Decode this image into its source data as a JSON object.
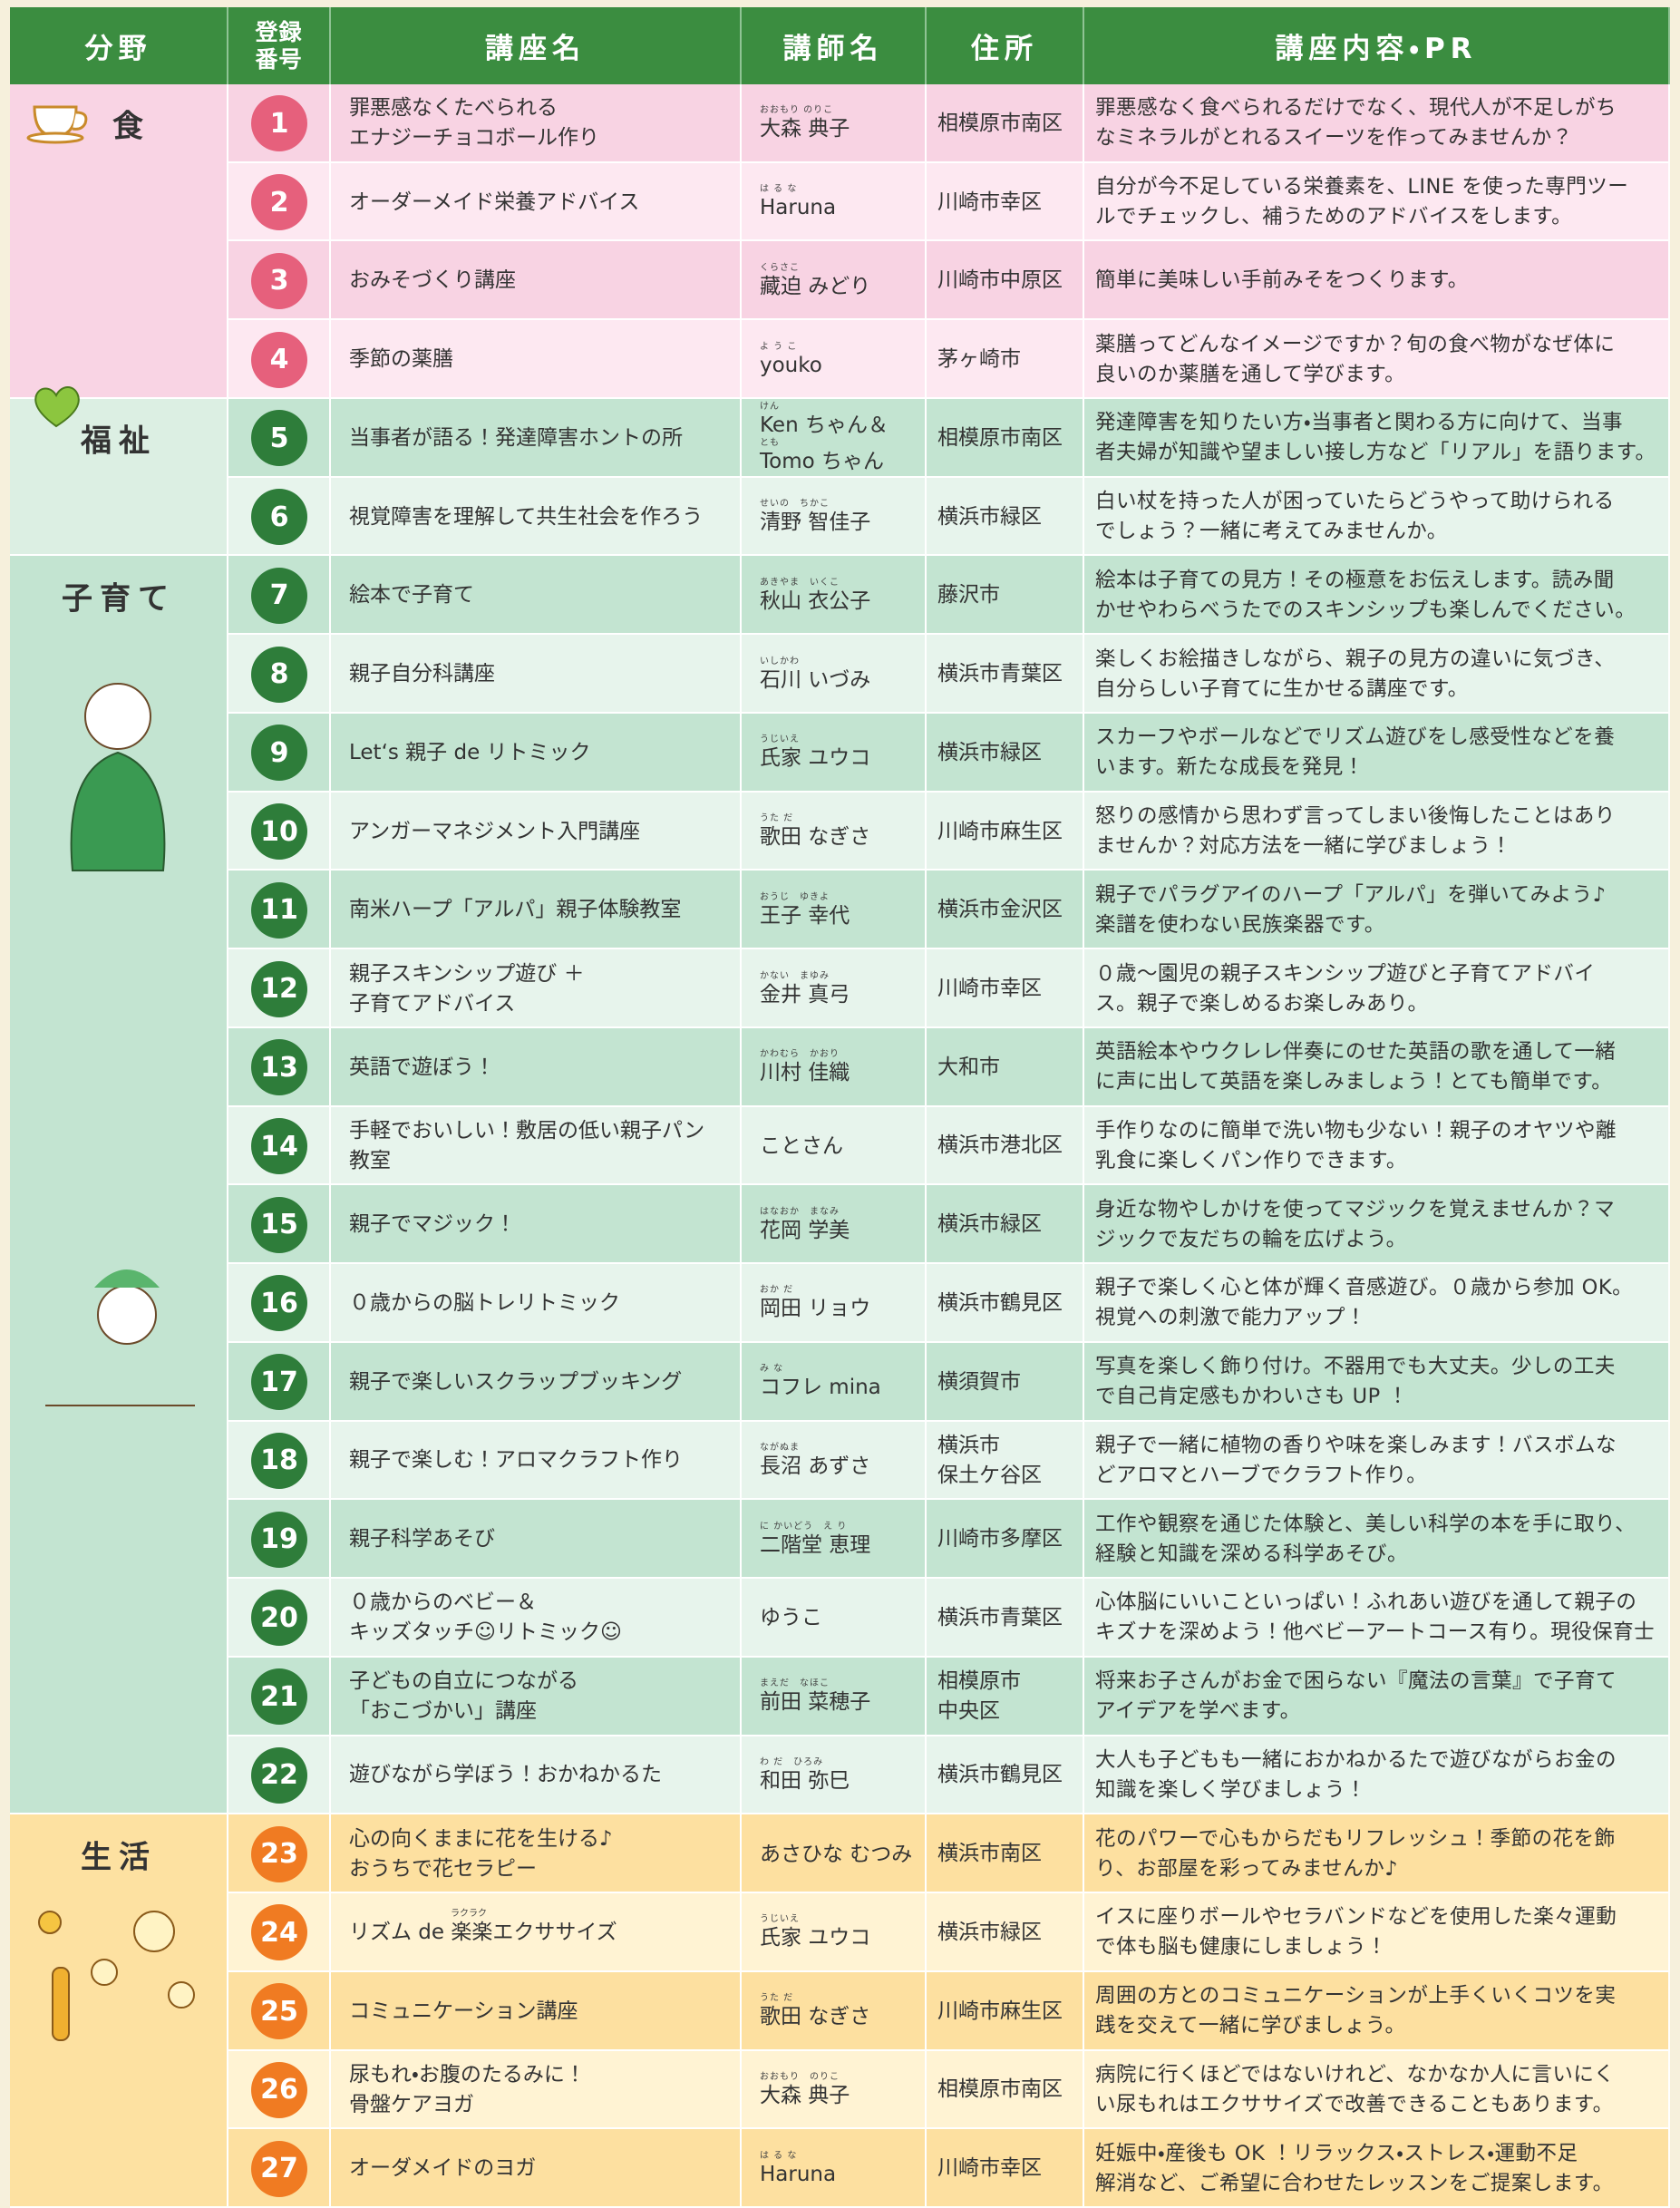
{
  "header": {
    "category": "分野",
    "number": [
      "登録",
      "番号"
    ],
    "title": "講座名",
    "lecturer": "講師名",
    "address": "住所",
    "pr": "講座内容・PR"
  },
  "sections": [
    {
      "name": "食",
      "rows": [
        {
          "no": 1,
          "title": [
            "罪悪感なくたべられる",
            "エナジーチョコボール作り"
          ],
          "lecturer": [
            {
              "reading": "おおもり のりこ",
              "name": "大森 典子"
            }
          ],
          "address": [
            "相模原市南区"
          ],
          "pr": [
            "罪悪感なく食べられるだけでなく、現代人が不足しがち",
            "なミネラルがとれるスイーツを作ってみませんか？"
          ]
        },
        {
          "no": 2,
          "title": [
            "オーダーメイド栄養アドバイス"
          ],
          "lecturer": [
            {
              "reading": "は る な",
              "name": "Haruna"
            }
          ],
          "address": [
            "川崎市幸区"
          ],
          "pr": [
            "自分が今不足している栄養素を、LINE を使った専門ツー",
            "ルでチェックし、補うためのアドバイスをします。"
          ]
        },
        {
          "no": 3,
          "title": [
            "おみそづくり講座"
          ],
          "lecturer": [
            {
              "reading": "くらさこ",
              "name": "藏迫 みどり"
            }
          ],
          "address": [
            "川崎市中原区"
          ],
          "pr": [
            "簡単に美味しい手前みそをつくります。"
          ]
        },
        {
          "no": 4,
          "title": [
            "季節の薬膳"
          ],
          "lecturer": [
            {
              "reading": "よ う こ",
              "name": "youko"
            }
          ],
          "address": [
            "茅ヶ崎市"
          ],
          "pr": [
            "薬膳ってどんなイメージですか？旬の食べ物がなぜ体に",
            "良いのか薬膳を通して学びます。"
          ]
        }
      ]
    },
    {
      "name": "福祉",
      "rows": [
        {
          "no": 5,
          "title": [
            "当事者が語る！発達障害ホントの所"
          ],
          "lecturer": [
            {
              "reading": "けん",
              "name": "Ken ちゃん＆"
            },
            {
              "reading": "とも",
              "name": "Tomo ちゃん"
            }
          ],
          "address": [
            "相模原市南区"
          ],
          "pr": [
            "発達障害を知りたい方・当事者と関わる方に向けて、当事",
            "者夫婦が知識や望ましい接し方など「リアル」を語ります。"
          ]
        },
        {
          "no": 6,
          "title": [
            "視覚障害を理解して共生社会を作ろう"
          ],
          "lecturer": [
            {
              "reading": "せいの　ちかこ",
              "name": "清野 智佳子"
            }
          ],
          "address": [
            "横浜市緑区"
          ],
          "pr": [
            "白い杖を持った人が困っていたらどうやって助けられる",
            "でしょう？一緒に考えてみませんか。"
          ]
        }
      ]
    },
    {
      "name": "子育て",
      "rows": [
        {
          "no": 7,
          "title": [
            "絵本で子育て"
          ],
          "lecturer": [
            {
              "reading": "あきやま　いくこ",
              "name": "秋山 衣公子"
            }
          ],
          "address": [
            "藤沢市"
          ],
          "pr": [
            "絵本は子育ての見方！その極意をお伝えします。読み聞",
            "かせやわらべうたでのスキンシップも楽しんでください。"
          ]
        },
        {
          "no": 8,
          "title": [
            "親子自分科講座"
          ],
          "lecturer": [
            {
              "reading": "いしかわ",
              "name": "石川 いづみ"
            }
          ],
          "address": [
            "横浜市青葉区"
          ],
          "pr": [
            "楽しくお絵描きしながら、親子の見方の違いに気づき、",
            "自分らしい子育てに生かせる講座です。"
          ]
        },
        {
          "no": 9,
          "title": [
            "Let‘s 親子 de リトミック"
          ],
          "lecturer": [
            {
              "reading": "うじいえ",
              "name": "氏家 ユウコ"
            }
          ],
          "address": [
            "横浜市緑区"
          ],
          "pr": [
            "スカーフやボールなどでリズム遊びをし感受性などを養",
            "います。新たな成長を発見！"
          ]
        },
        {
          "no": 10,
          "title": [
            "アンガーマネジメント入門講座"
          ],
          "lecturer": [
            {
              "reading": "うた だ",
              "name": "歌田 なぎさ"
            }
          ],
          "address": [
            "川崎市麻生区"
          ],
          "pr": [
            "怒りの感情から思わず言ってしまい後悔したことはあり",
            "ませんか？対応方法を一緒に学びましょう！"
          ]
        },
        {
          "no": 11,
          "title": [
            "南米ハープ「アルパ」親子体験教室"
          ],
          "lecturer": [
            {
              "reading": "おうじ　ゆきよ",
              "name": "王子 幸代"
            }
          ],
          "address": [
            "横浜市金沢区"
          ],
          "pr": [
            "親子でパラグアイのハープ「アルパ」を弾いてみよう♪",
            "楽譜を使わない民族楽器です。"
          ]
        },
        {
          "no": 12,
          "title": [
            "親子スキンシップ遊び ＋",
            "子育てアドバイス"
          ],
          "lecturer": [
            {
              "reading": "かない　まゆみ",
              "name": "金井 真弓"
            }
          ],
          "address": [
            "川崎市幸区"
          ],
          "pr": [
            "０歳～園児の親子スキンシップ遊びと子育てアドバイ",
            "ス。親子で楽しめるお楽しみあり。"
          ]
        },
        {
          "no": 13,
          "title": [
            "英語で遊ぼう！"
          ],
          "lecturer": [
            {
              "reading": "かわむら　かおり",
              "name": "川村 佳織"
            }
          ],
          "address": [
            "大和市"
          ],
          "pr": [
            "英語絵本やウクレレ伴奏にのせた英語の歌を通して一緒",
            "に声に出して英語を楽しみましょう！とても簡単です。"
          ]
        },
        {
          "no": 14,
          "title": [
            "手軽でおいしい！敷居の低い親子パン",
            "教室"
          ],
          "lecturer": [
            {
              "name": "ことさん"
            }
          ],
          "address": [
            "横浜市港北区"
          ],
          "pr": [
            "手作りなのに簡単で洗い物も少ない！親子のオヤツや離",
            "乳食に楽しくパン作りできます。"
          ]
        },
        {
          "no": 15,
          "title": [
            "親子でマジック！"
          ],
          "lecturer": [
            {
              "reading": "はなおか　まなみ",
              "name": "花岡 学美"
            }
          ],
          "address": [
            "横浜市緑区"
          ],
          "pr": [
            "身近な物やしかけを使ってマジックを覚えませんか？マ",
            "ジックで友だちの輪を広げよう。"
          ]
        },
        {
          "no": 16,
          "title": [
            "０歳からの脳トレリトミック"
          ],
          "lecturer": [
            {
              "reading": "おか だ",
              "name": "岡田 リョウ"
            }
          ],
          "address": [
            "横浜市鶴見区"
          ],
          "pr": [
            "親子で楽しく心と体が輝く音感遊び。０歳から参加 OK。",
            "視覚への刺激で能力アップ！"
          ]
        },
        {
          "no": 17,
          "title": [
            "親子で楽しいスクラップブッキング"
          ],
          "lecturer": [
            {
              "reading": "み な",
              "name": "コフレ mina"
            }
          ],
          "address": [
            "横須賀市"
          ],
          "pr": [
            "写真を楽しく飾り付け。不器用でも大丈夫。少しの工夫",
            "で自己肯定感もかわいさも UP ！"
          ]
        },
        {
          "no": 18,
          "title": [
            "親子で楽しむ！アロマクラフト作り"
          ],
          "lecturer": [
            {
              "reading": "ながぬま",
              "name": "長沼 あずさ"
            }
          ],
          "address": [
            "横浜市",
            "保土ケ谷区"
          ],
          "pr": [
            "親子で一緒に植物の香りや味を楽しみます！バスボムな",
            "どアロマとハーブでクラフト作り。"
          ]
        },
        {
          "no": 19,
          "title": [
            "親子科学あそび"
          ],
          "lecturer": [
            {
              "reading": "に かいどう　え り",
              "name": "二階堂 恵理"
            }
          ],
          "address": [
            "川崎市多摩区"
          ],
          "pr": [
            "工作や観察を通じた体験と、美しい科学の本を手に取り、",
            "経験と知識を深める科学あそび。"
          ]
        },
        {
          "no": 20,
          "title": [
            "０歳からのベビー＆",
            "キッズタッチ☺リトミック☺"
          ],
          "lecturer": [
            {
              "name": "ゆうこ"
            }
          ],
          "address": [
            "横浜市青葉区"
          ],
          "pr": [
            "心体脳にいいこといっぱい！ふれあい遊びを通して親子の",
            "キズナを深めよう！他ベビーアートコース有り。現役保育士"
          ]
        },
        {
          "no": 21,
          "title": [
            "子どもの自立につながる",
            "「おこづかい」講座"
          ],
          "lecturer": [
            {
              "reading": "まえだ　なほこ",
              "name": "前田 菜穂子"
            }
          ],
          "address": [
            "相模原市",
            "中央区"
          ],
          "pr": [
            "将来お子さんがお金で困らない『魔法の言葉』で子育て",
            "アイデアを学べます。"
          ]
        },
        {
          "no": 22,
          "title": [
            "遊びながら学ぼう！おかねかるた"
          ],
          "lecturer": [
            {
              "reading": "わ だ　ひろみ",
              "name": "和田 弥巳"
            }
          ],
          "address": [
            "横浜市鶴見区"
          ],
          "pr": [
            "大人も子どもも一緒におかねかるたで遊びながらお金の",
            "知識を楽しく学びましょう！"
          ]
        }
      ]
    },
    {
      "name": "生活",
      "rows": [
        {
          "no": 23,
          "title": [
            "心の向くままに花を生ける♪",
            "おうちで花セラピー"
          ],
          "lecturer": [
            {
              "name": "あさひな むつみ"
            }
          ],
          "address": [
            "横浜市南区"
          ],
          "pr": [
            "花のパワーで心もからだもリフレッシュ！季節の花を飾",
            "り、お部屋を彩ってみませんか♪"
          ]
        },
        {
          "no": 24,
          "title": [
            "リズム de 楽楽エクササイズ"
          ],
          "title_ruby": "ラクラク",
          "lecturer": [
            {
              "reading": "うじいえ",
              "name": "氏家 ユウコ"
            }
          ],
          "address": [
            "横浜市緑区"
          ],
          "pr": [
            "イスに座りボールやセラバンドなどを使用した楽々運動",
            "で体も脳も健康にしましょう！"
          ]
        },
        {
          "no": 25,
          "title": [
            "コミュニケーション講座"
          ],
          "lecturer": [
            {
              "reading": "うた だ",
              "name": "歌田 なぎさ"
            }
          ],
          "address": [
            "川崎市麻生区"
          ],
          "pr": [
            "周囲の方とのコミュニケーションが上手くいくコツを実",
            "践を交えて一緒に学びましょう。"
          ]
        },
        {
          "no": 26,
          "title": [
            "尿もれ・お腹のたるみに！",
            "骨盤ケアヨガ"
          ],
          "lecturer": [
            {
              "reading": "おおもり　のりこ",
              "name": "大森 典子"
            }
          ],
          "address": [
            "相模原市南区"
          ],
          "pr": [
            "病院に行くほどではないけれど、なかなか人に言いにく",
            "い尿もれはエクササイズで改善できることもあります。"
          ]
        },
        {
          "no": 27,
          "title": [
            "オーダメイドのヨガ"
          ],
          "lecturer": [
            {
              "reading": "は る な",
              "name": "Haruna"
            }
          ],
          "address": [
            "川崎市幸区"
          ],
          "pr": [
            "妊娠中・産後も OK ！リラックス・ストレス・運動不足",
            "解消など、ご希望に合わせたレッスンをご提案します。"
          ]
        }
      ]
    }
  ]
}
